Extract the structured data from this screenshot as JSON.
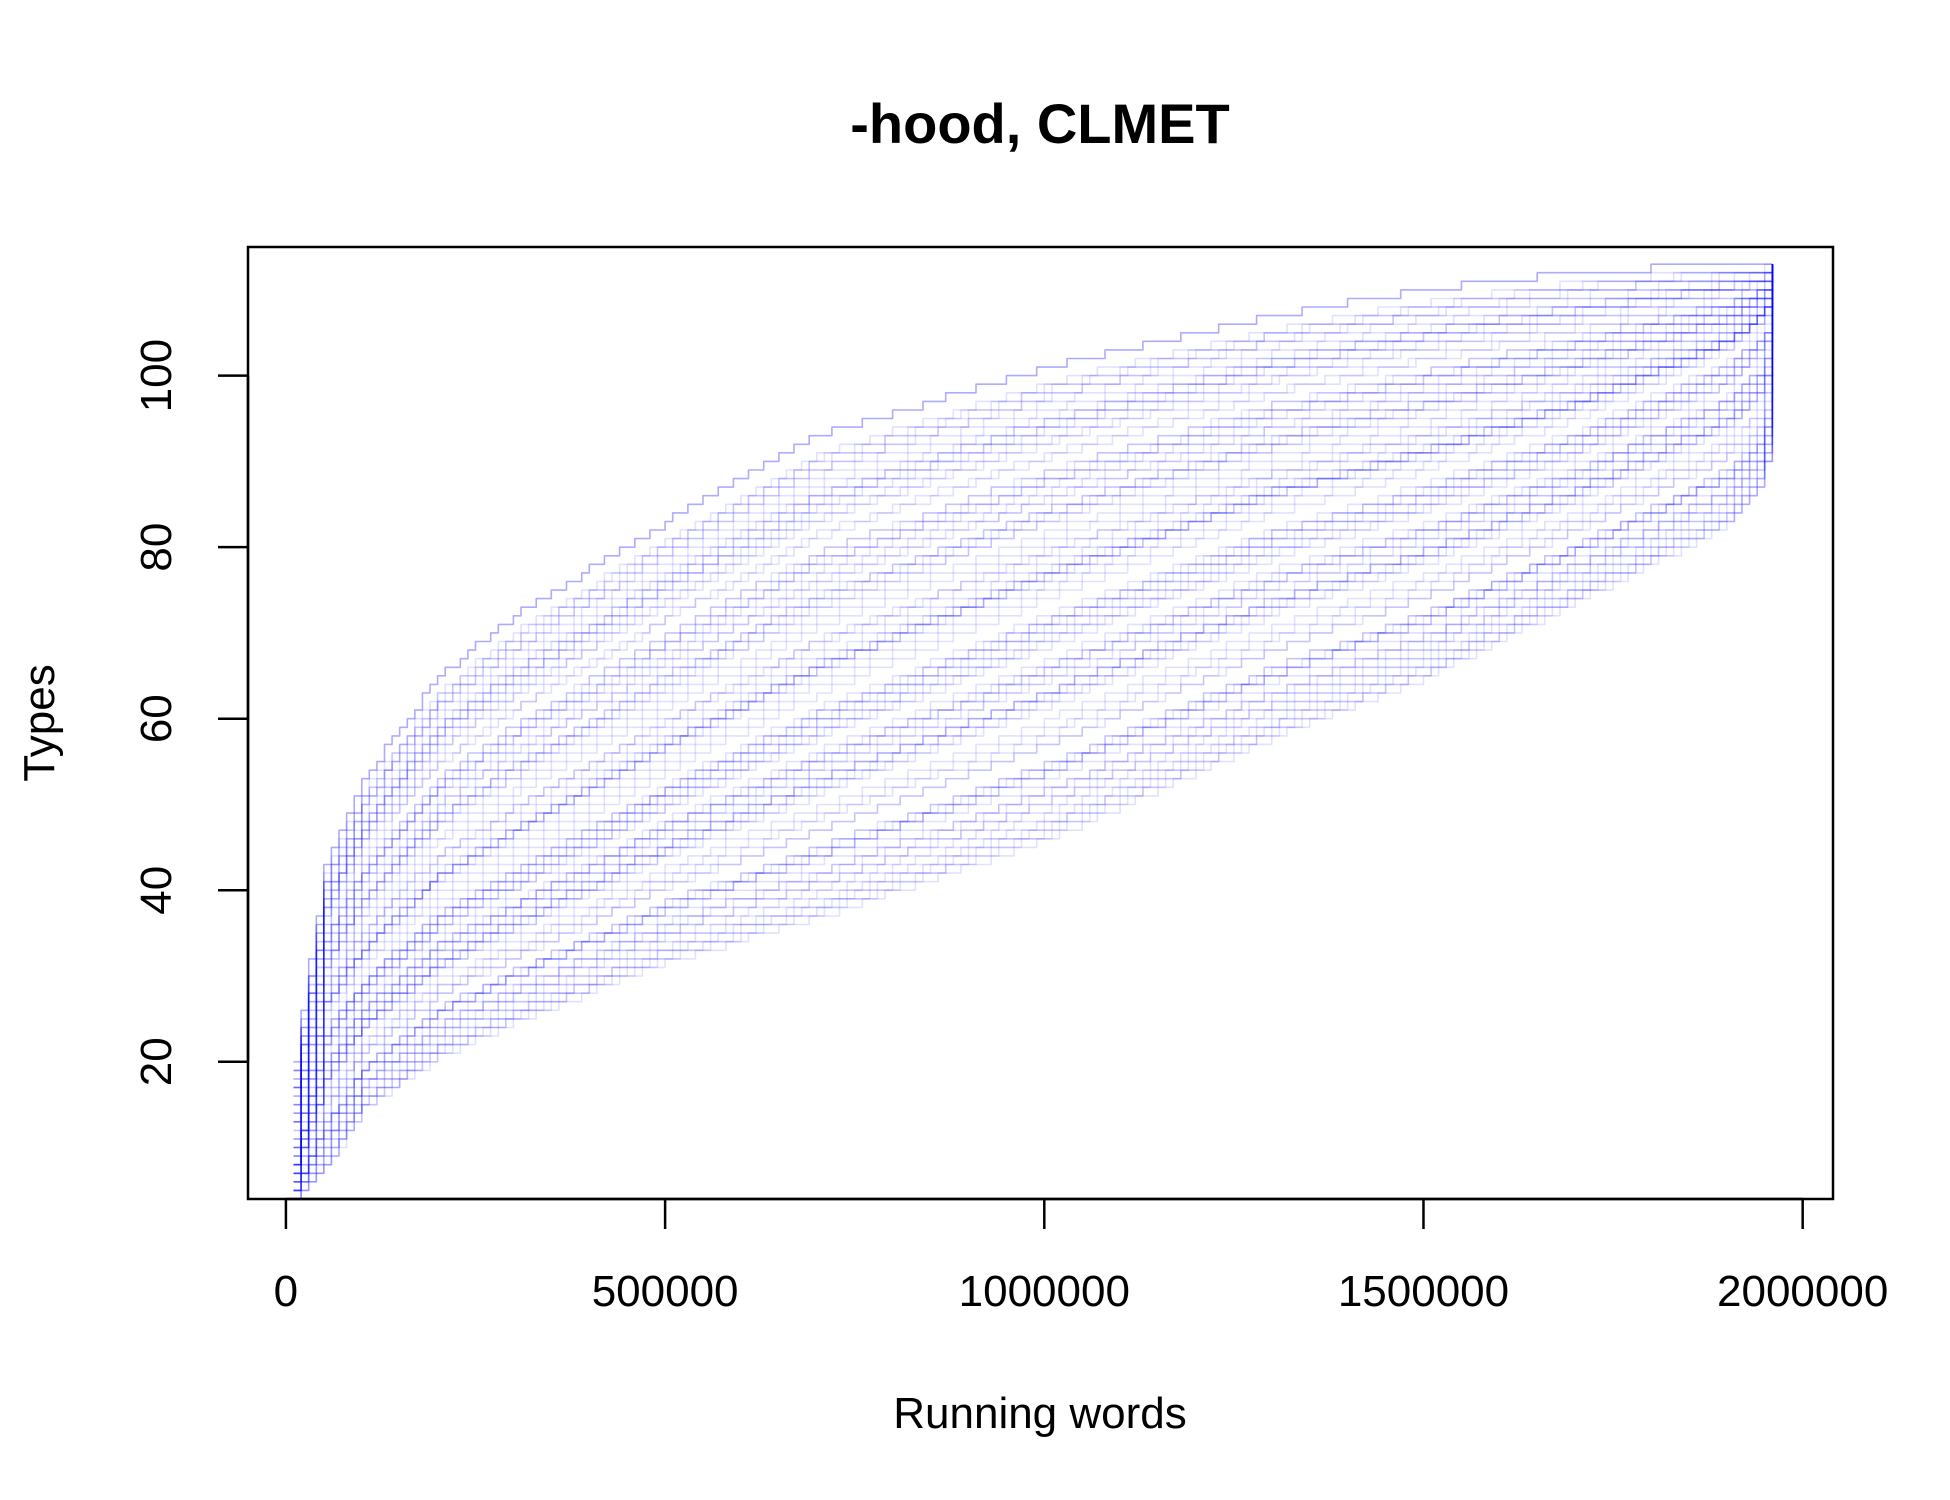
{
  "chart_data": {
    "type": "line",
    "title": "-hood, CLMET",
    "xlabel": "Running words",
    "ylabel": "Types",
    "xlim": [
      -50000,
      2040000
    ],
    "ylim": [
      4,
      115
    ],
    "x_ticks": [
      0,
      500000,
      1000000,
      1500000,
      2000000
    ],
    "x_tick_labels": [
      "0",
      "500000",
      "1000000",
      "1500000",
      "2000000"
    ],
    "y_ticks": [
      20,
      40,
      60,
      80,
      100
    ],
    "y_tick_labels": [
      "20",
      "40",
      "60",
      "80",
      "100"
    ],
    "grid": false,
    "legend": "none",
    "line_color": "#0000FF",
    "line_opacity": 0.12,
    "n_curves": 100,
    "x_start": 10000,
    "x_end": 1960000,
    "envelope": {
      "x": [
        10000,
        50000,
        100000,
        200000,
        300000,
        500000,
        700000,
        1000000,
        1300000,
        1500000,
        1700000,
        1900000,
        1940000,
        1960000
      ],
      "upper": [
        20,
        43,
        53,
        65,
        72,
        83,
        93,
        101,
        107,
        110,
        112,
        113,
        113,
        113
      ],
      "median": [
        9,
        25,
        31,
        39,
        44,
        54,
        63,
        74,
        84,
        89,
        95,
        103,
        106,
        108
      ],
      "lower": [
        4,
        7,
        14,
        20,
        24,
        31,
        36,
        45,
        57,
        64,
        73,
        82,
        86,
        92
      ]
    }
  }
}
